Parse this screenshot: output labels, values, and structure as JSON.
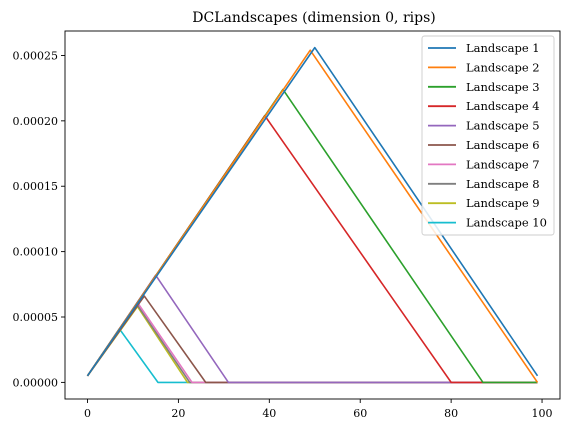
{
  "chart_data": {
    "type": "line",
    "title": "DCLandscapes (dimension 0, rips)",
    "xlabel": "",
    "ylabel": "",
    "xlim": [
      -4.95,
      103.95
    ],
    "ylim": [
      -1.27e-05,
      0.0002687
    ],
    "xticks": [
      0,
      20,
      40,
      60,
      80,
      100
    ],
    "xtick_labels": [
      "0",
      "20",
      "40",
      "60",
      "80",
      "100"
    ],
    "yticks": [
      0,
      5e-05,
      0.0001,
      0.00015,
      0.0002,
      0.00025
    ],
    "ytick_labels": [
      "0.00000",
      "0.00005",
      "0.00010",
      "0.00015",
      "0.00020",
      "0.00025"
    ],
    "grid": false,
    "legend_position": "top-right",
    "series": [
      {
        "name": "Landscape 1",
        "color": "#1f77b4",
        "points": [
          [
            0,
            5e-06
          ],
          [
            50,
            0.000256
          ],
          [
            99,
            5e-06
          ]
        ]
      },
      {
        "name": "Landscape 2",
        "color": "#ff7f0e",
        "points": [
          [
            0,
            5e-06
          ],
          [
            49,
            0.000254
          ],
          [
            99,
            0
          ]
        ]
      },
      {
        "name": "Landscape 3",
        "color": "#2ca02c",
        "points": [
          [
            0,
            5e-06
          ],
          [
            43,
            0.000224
          ],
          [
            87,
            0
          ],
          [
            99,
            0
          ]
        ]
      },
      {
        "name": "Landscape 4",
        "color": "#d62728",
        "points": [
          [
            0,
            5e-06
          ],
          [
            39,
            0.000204
          ],
          [
            80,
            0
          ],
          [
            99,
            0
          ]
        ]
      },
      {
        "name": "Landscape 5",
        "color": "#9467bd",
        "points": [
          [
            0,
            5e-06
          ],
          [
            15,
            8.2e-05
          ],
          [
            31,
            0
          ],
          [
            99,
            0
          ]
        ]
      },
      {
        "name": "Landscape 6",
        "color": "#8c564b",
        "points": [
          [
            0,
            5e-06
          ],
          [
            12.5,
            6.6e-05
          ],
          [
            26,
            0
          ],
          [
            99,
            0
          ]
        ]
      },
      {
        "name": "Landscape 7",
        "color": "#e377c2",
        "points": [
          [
            0,
            5e-06
          ],
          [
            11,
            6.1e-05
          ],
          [
            23,
            0
          ],
          [
            99,
            0
          ]
        ]
      },
      {
        "name": "Landscape 8",
        "color": "#7f7f7f",
        "points": [
          [
            0,
            5e-06
          ],
          [
            11,
            5.9e-05
          ],
          [
            22.5,
            0
          ],
          [
            99,
            0
          ]
        ]
      },
      {
        "name": "Landscape 9",
        "color": "#bcbd22",
        "points": [
          [
            0,
            5e-06
          ],
          [
            11,
            5.8e-05
          ],
          [
            22,
            0
          ],
          [
            99,
            0
          ]
        ]
      },
      {
        "name": "Landscape 10",
        "color": "#17becf",
        "points": [
          [
            0,
            5e-06
          ],
          [
            7,
            4.1e-05
          ],
          [
            15.5,
            0
          ],
          [
            99,
            0
          ]
        ]
      }
    ]
  }
}
